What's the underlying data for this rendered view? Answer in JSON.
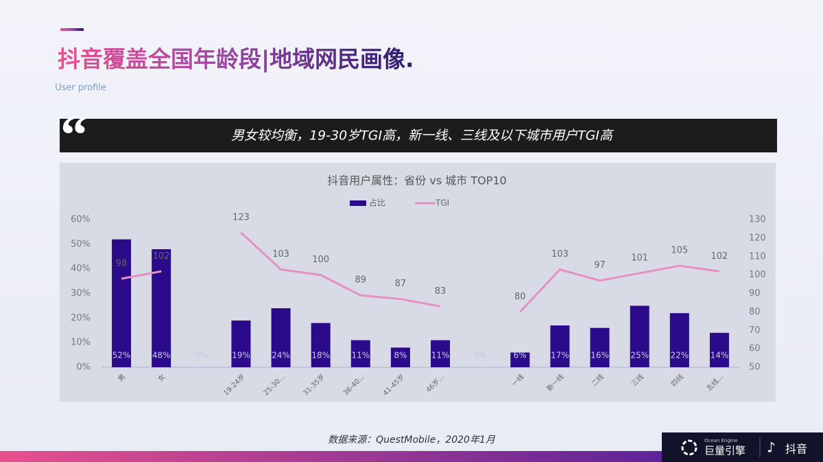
{
  "header": {
    "title": "抖音覆盖全国年龄段|地域网民画像.",
    "subtitle": "User profile"
  },
  "quote": "男女较均衡，19-30岁TGI高，新一线、三线及以下城市用户TGI高",
  "source": "数据来源：QuestMobile，2020年1月",
  "logos": {
    "engine_en": "Ocean Engine",
    "engine": "巨量引擎",
    "douyin": "抖音"
  },
  "chart_data": {
    "type": "bar",
    "title": "抖音用户属性：省份 vs 城市 TOP10",
    "categories": [
      "男",
      "女",
      null,
      "19-24岁",
      "25-30...",
      "31-35岁",
      "36-40...",
      "41-45岁",
      "46岁...",
      null,
      "一线",
      "新一线",
      "二线",
      "三线",
      "四线",
      "五线..."
    ],
    "series": [
      {
        "name": "占比",
        "type": "bar",
        "color": "#2c0b8a",
        "values": [
          52,
          48,
          0,
          19,
          24,
          18,
          11,
          8,
          11,
          0,
          6,
          17,
          16,
          25,
          22,
          14
        ],
        "value_labels": [
          "52%",
          "48%",
          "0%",
          "19%",
          "24%",
          "18%",
          "11%",
          "8%",
          "11%",
          "0%",
          "6%",
          "17%",
          "16%",
          "25%",
          "22%",
          "14%"
        ]
      },
      {
        "name": "TGI",
        "type": "line",
        "axis": "y2",
        "color": "#e68fc2",
        "values": [
          98,
          102,
          null,
          123,
          103,
          100,
          89,
          87,
          83,
          null,
          80,
          103,
          97,
          101,
          105,
          102
        ]
      }
    ],
    "ylim": [
      0,
      60
    ],
    "yticks": [
      {
        "value": 0,
        "label": "0%"
      },
      {
        "value": 10,
        "label": "10%"
      },
      {
        "value": 20,
        "label": "20%"
      },
      {
        "value": 30,
        "label": "30%"
      },
      {
        "value": 40,
        "label": "40%"
      },
      {
        "value": 50,
        "label": "50%"
      },
      {
        "value": 60,
        "label": "60%"
      }
    ],
    "y2lim": [
      50,
      130
    ],
    "y2ticks": [
      50,
      60,
      70,
      80,
      90,
      100,
      110,
      120,
      130
    ],
    "legend": "top"
  }
}
